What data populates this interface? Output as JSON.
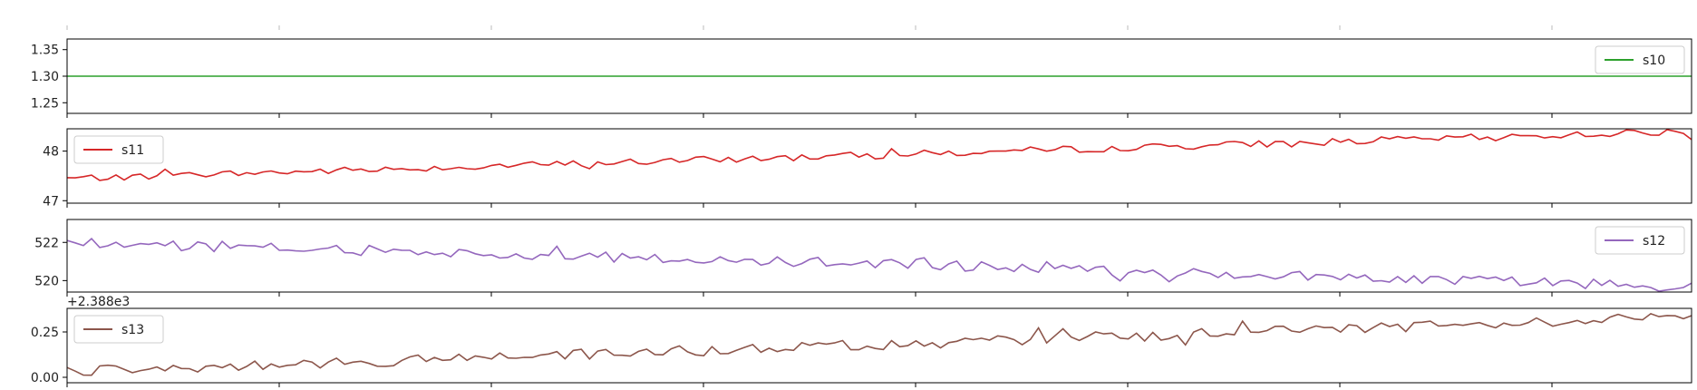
{
  "colors": {
    "s10": "#2ca02c",
    "s11": "#d62728",
    "s12": "#9467bd",
    "s13": "#8c564b",
    "axis": "#000000",
    "tick_text": "#222222"
  },
  "chart_data": [
    {
      "type": "line",
      "name": "panel-s10",
      "series": [
        {
          "name": "s10",
          "values": [
            1.3,
            1.3
          ]
        }
      ],
      "x": [
        0,
        200
      ],
      "ylim": [
        1.23,
        1.37
      ],
      "yticks": [
        1.25,
        1.3,
        1.35
      ],
      "ytick_labels": [
        "1.25",
        "1.30",
        "1.35"
      ],
      "legend": "top-right",
      "grid": false
    },
    {
      "type": "line",
      "name": "panel-s11",
      "series": [
        {
          "name": "s11",
          "values": [
            47.45,
            48.4
          ]
        }
      ],
      "x": [
        0,
        200
      ],
      "ylim": [
        46.95,
        48.45
      ],
      "yticks": [
        47,
        48
      ],
      "ytick_labels": [
        "47",
        "48"
      ],
      "legend": "top-left",
      "grid": false
    },
    {
      "type": "line",
      "name": "panel-s12",
      "series": [
        {
          "name": "s12",
          "values": [
            522.0,
            519.7
          ]
        }
      ],
      "x": [
        0,
        200
      ],
      "ylim": [
        519.4,
        523.2
      ],
      "yticks": [
        520,
        522
      ],
      "ytick_labels": [
        "520",
        "522"
      ],
      "legend": "top-right",
      "grid": false
    },
    {
      "type": "line",
      "name": "panel-s13",
      "series": [
        {
          "name": "s13",
          "values": [
            0.03,
            0.33
          ]
        }
      ],
      "x": [
        0,
        200
      ],
      "ylim": [
        -0.03,
        0.38
      ],
      "yticks": [
        0.0,
        0.25
      ],
      "ytick_labels": [
        "0.00",
        "0.25"
      ],
      "offset_label": "+2.388e3",
      "legend": "top-left",
      "grid": false
    }
  ]
}
